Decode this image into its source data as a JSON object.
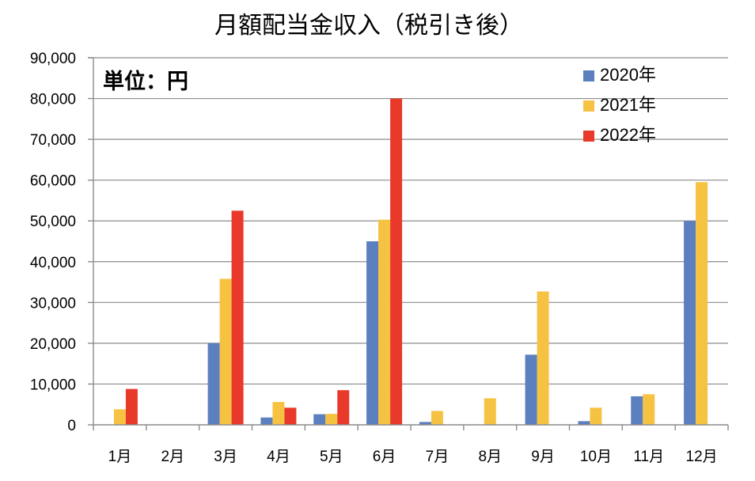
{
  "chart_data": {
    "type": "bar",
    "title": "月額配当金収入（税引き後）",
    "unit_label": "単位：円",
    "categories": [
      "1月",
      "2月",
      "3月",
      "4月",
      "5月",
      "6月",
      "7月",
      "8月",
      "9月",
      "10月",
      "11月",
      "12月"
    ],
    "series": [
      {
        "name": "2020年",
        "color": "#5b7fbf",
        "values": [
          0,
          0,
          20000,
          1800,
          2600,
          45000,
          700,
          0,
          17200,
          900,
          7000,
          50000
        ]
      },
      {
        "name": "2021年",
        "color": "#f5c242",
        "values": [
          3800,
          0,
          35800,
          5600,
          2700,
          50300,
          3400,
          6500,
          32700,
          4200,
          7500,
          59500
        ]
      },
      {
        "name": "2022年",
        "color": "#e8392a",
        "values": [
          8800,
          0,
          52500,
          4200,
          8500,
          80000,
          0,
          0,
          0,
          0,
          0,
          0
        ]
      }
    ],
    "y_ticks": [
      "0",
      "10,000",
      "20,000",
      "30,000",
      "40,000",
      "50,000",
      "60,000",
      "70,000",
      "80,000",
      "90,000"
    ],
    "ylim": [
      0,
      90000
    ],
    "grid": true,
    "legend_position": "top-right"
  }
}
